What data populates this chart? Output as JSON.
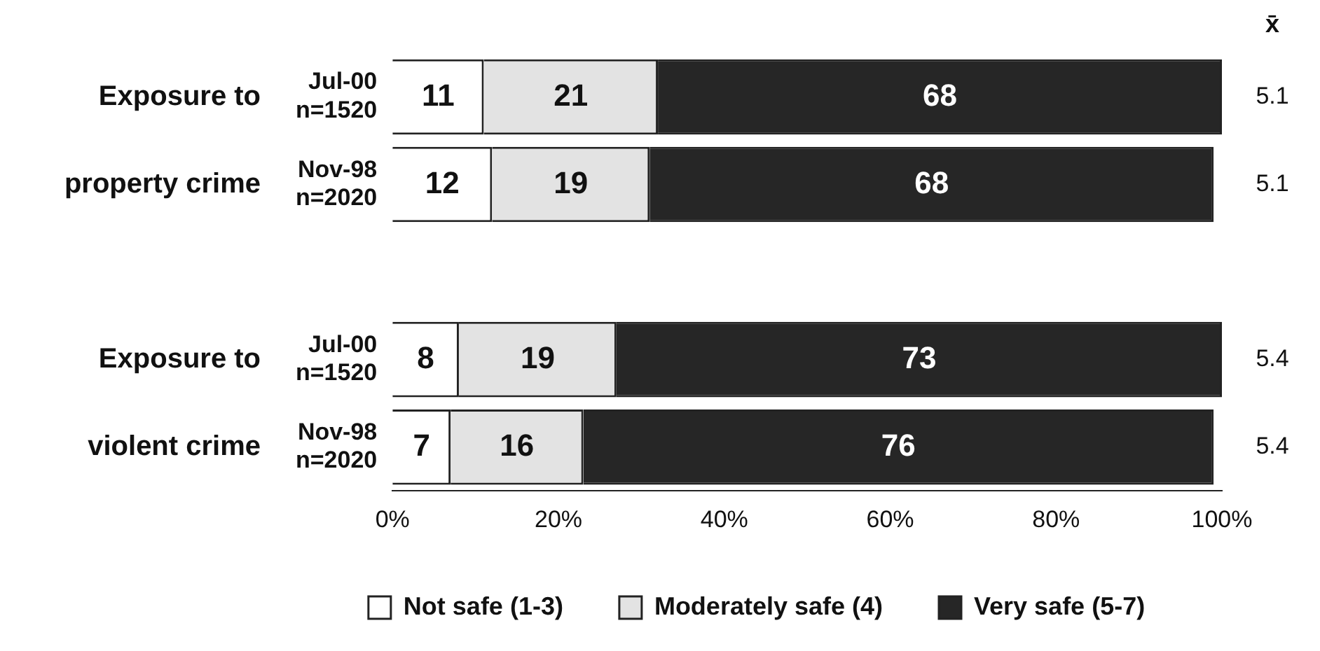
{
  "chart_data": {
    "type": "bar",
    "orientation": "horizontal",
    "stacked": true,
    "categories": [
      "Jul-00 n=1520",
      "Nov-98 n=2020",
      null,
      "Jul-00 n=1520",
      "Nov-98 n=2020"
    ],
    "series": [
      {
        "name": "Not safe (1-3)",
        "color": "#ffffff",
        "values": [
          11,
          12,
          null,
          8,
          7
        ]
      },
      {
        "name": "Moderately safe (4)",
        "color": "#e3e3e3",
        "values": [
          21,
          19,
          null,
          19,
          16
        ]
      },
      {
        "name": "Very safe (5-7)",
        "color": "#262626",
        "values": [
          68,
          68,
          null,
          73,
          76
        ]
      }
    ],
    "xlim": [
      0,
      100
    ],
    "xticks": [
      {
        "value": 0,
        "label": "0%"
      },
      {
        "value": 20,
        "label": "20%"
      },
      {
        "value": 40,
        "label": "40%"
      },
      {
        "value": 60,
        "label": "60%"
      },
      {
        "value": 80,
        "label": "80%"
      },
      {
        "value": 100,
        "label": "100%"
      }
    ],
    "data_labels": true,
    "legend": "bottom",
    "grid": false,
    "annotations": [
      "x̄",
      "5.1",
      "5.1",
      "5.4",
      "5.4",
      "Exposure to property crime",
      "Exposure to violent crime"
    ]
  }
}
